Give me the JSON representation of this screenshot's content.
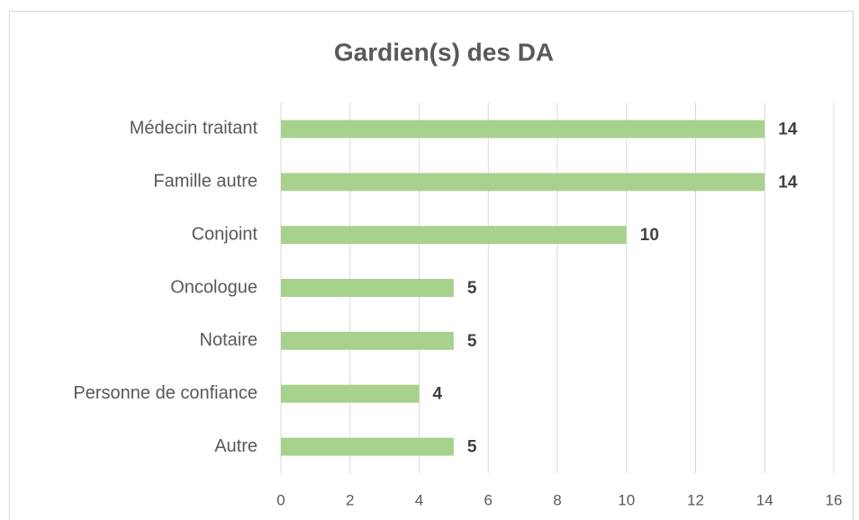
{
  "chart_data": {
    "type": "bar",
    "orientation": "horizontal",
    "title": "Gardien(s) des DA",
    "categories": [
      "Médecin traitant",
      "Famille autre",
      "Conjoint",
      "Oncologue",
      "Notaire",
      "Personne de confiance",
      "Autre"
    ],
    "values": [
      14,
      14,
      10,
      5,
      5,
      4,
      5
    ],
    "color": "#a9d18e",
    "xlim": [
      0,
      16
    ],
    "xticks": [
      0,
      2,
      4,
      6,
      8,
      10,
      12,
      14,
      16
    ],
    "grid": true
  }
}
